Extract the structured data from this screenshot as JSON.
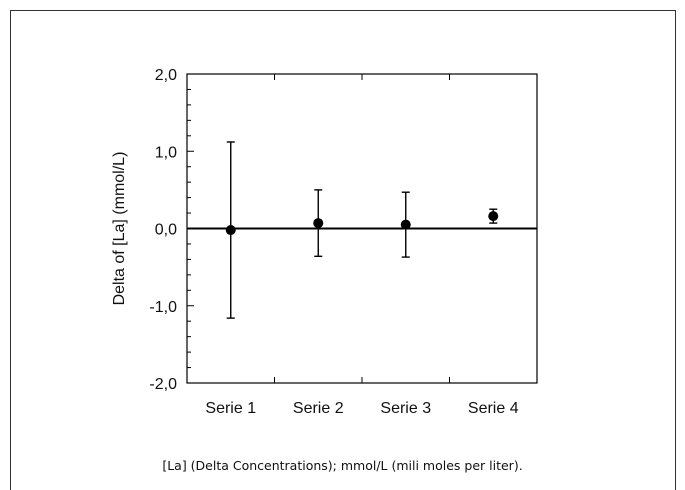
{
  "chart_data": {
    "type": "scatter",
    "title": "",
    "xlabel": "",
    "ylabel": "Delta of [La] (mmol/L)",
    "categories": [
      "Serie 1",
      "Serie 2",
      "Serie 3",
      "Serie 4"
    ],
    "series": [
      {
        "values": [
          -0.02,
          0.07,
          0.05,
          0.16
        ],
        "error_low": [
          -1.16,
          -0.36,
          -0.37,
          0.07
        ],
        "error_high": [
          1.12,
          0.5,
          0.47,
          0.25
        ]
      }
    ],
    "ylim": [
      -2.0,
      2.0
    ],
    "yticks": [
      -2.0,
      -1.0,
      0.0,
      1.0,
      2.0
    ],
    "ytick_labels": [
      "-2,0",
      "-1,0",
      "0,0",
      "1,0",
      "2,0"
    ],
    "zero_line": true,
    "grid": false,
    "legend": "none",
    "colors": {
      "marker": "#000000",
      "axis": "#000000"
    }
  },
  "caption": "[La] (Delta Concentrations); mmol/L (mili moles per liter)."
}
